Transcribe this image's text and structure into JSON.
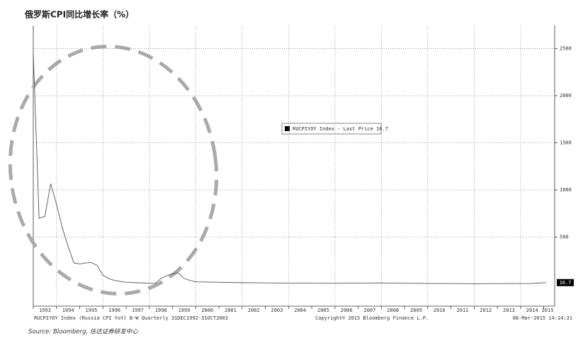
{
  "chart_data": {
    "type": "line",
    "title": "俄罗斯CPI同比增长率（%）",
    "legend_text": "RUCPIYOY Index - Last Price 16.7",
    "footer_left": "RUCPIYOY Index (Russia CPI YoY) B-W  Quarterly 31DEC1992-31OCT2003",
    "footer_center": "Copyright© 2015 Bloomberg Finance L.P.",
    "footer_right": "08-Mar-2015 14:14:31",
    "source": "Source: Bloomberg, 信达证券研发中心",
    "series": [
      {
        "name": "RUCPIYOY Index",
        "color": "#555555",
        "x": [
          1993.0,
          1993.25,
          1993.5,
          1993.75,
          1994.0,
          1994.25,
          1994.5,
          1994.75,
          1995.0,
          1995.25,
          1995.5,
          1995.75,
          1996.0,
          1996.25,
          1996.5,
          1996.75,
          1997.0,
          1997.5,
          1998.0,
          1998.25,
          1998.5,
          1998.75,
          1999.0,
          1999.25,
          1999.5,
          1999.75,
          2000.0,
          2001.0,
          2002.0,
          2003.0,
          2004.0,
          2005.0,
          2006.0,
          2007.0,
          2008.0,
          2009.0,
          2010.0,
          2011.0,
          2012.0,
          2013.0,
          2014.0,
          2014.5,
          2015.1
        ],
        "values": [
          2450,
          700,
          720,
          1065,
          850,
          600,
          400,
          225,
          215,
          225,
          230,
          200,
          95,
          60,
          40,
          30,
          20,
          15,
          10,
          8,
          60,
          90,
          110,
          120,
          60,
          40,
          25,
          20,
          16,
          14,
          11,
          11,
          10,
          12,
          14,
          10,
          8,
          7,
          4,
          6,
          7,
          8,
          16.7
        ],
        "last_label": "16.7"
      }
    ],
    "xlim": [
      1993,
      2015.47
    ],
    "xticks": [
      1993,
      1994,
      1995,
      1996,
      1997,
      1998,
      1999,
      2000,
      2001,
      2002,
      2003,
      2004,
      2005,
      2006,
      2007,
      2008,
      2009,
      2010,
      2011,
      2012,
      2013,
      2014,
      2015
    ],
    "ylim": [
      -233,
      2744
    ],
    "yticks": [
      500,
      1000,
      1500,
      2000,
      2500
    ],
    "grid": true
  }
}
